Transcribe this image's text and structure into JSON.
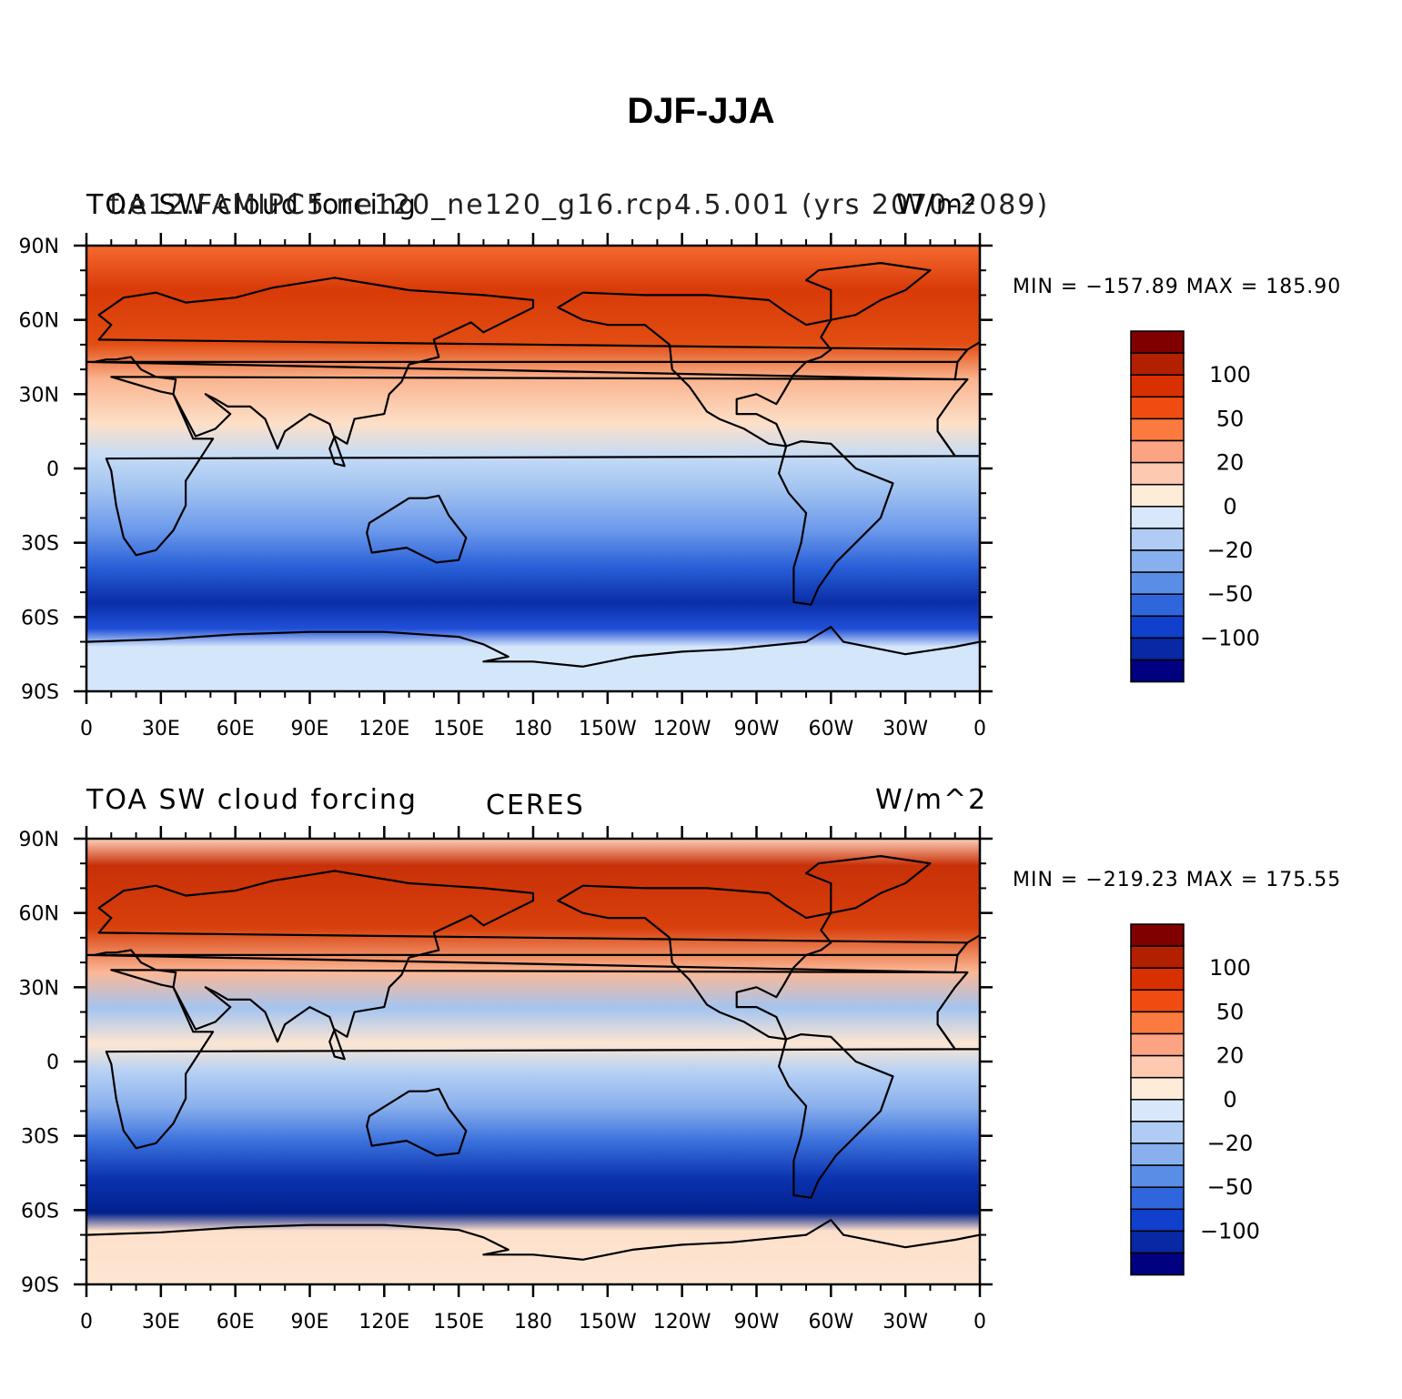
{
  "title": "DJF-JJA",
  "panels": [
    {
      "left_title": "TOA SW cloud forcing",
      "overlap_title": "f.e12.FAMIPC5.ne120_ne120_g16.rcp4.5.001 (yrs 2070-2089)",
      "right_title": "W/m²",
      "center_title": "",
      "minmax": "MIN = −157.89  MAX = 185.90"
    },
    {
      "left_title": "TOA SW cloud forcing",
      "overlap_title": "",
      "right_title": "W/m^2",
      "center_title": "CERES",
      "minmax": "MIN = −219.23  MAX = 175.55"
    }
  ],
  "lon_ticks": [
    "0",
    "30E",
    "60E",
    "90E",
    "120E",
    "150E",
    "180",
    "150W",
    "120W",
    "90W",
    "60W",
    "30W",
    "0"
  ],
  "lat_ticks": [
    "90N",
    "60N",
    "30N",
    "0",
    "30S",
    "60S",
    "90S"
  ],
  "colorbar": {
    "labels": [
      "100",
      "50",
      "20",
      "0",
      "−20",
      "−50",
      "−100"
    ],
    "colors": [
      "#800000",
      "#b22000",
      "#d83000",
      "#f04b10",
      "#fa7a40",
      "#fba383",
      "#fdc9b0",
      "#feebd8",
      "#d8e8fa",
      "#b0ccf4",
      "#88b0ee",
      "#5a8ee6",
      "#3066dc",
      "#1040cc",
      "#0828a4",
      "#000080"
    ]
  }
}
